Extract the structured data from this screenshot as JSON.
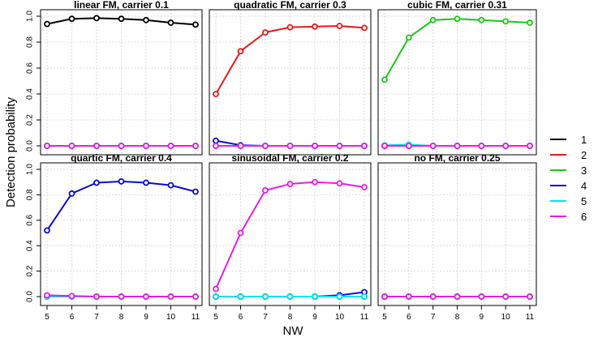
{
  "chart_data": {
    "type": "line",
    "xlabel": "NW",
    "ylabel": "Detection probability",
    "x": [
      5,
      6,
      7,
      8,
      9,
      10,
      11
    ],
    "ylim": [
      0,
      1
    ],
    "y_ticks": [
      "0.0",
      "0.2",
      "0.4",
      "0.6",
      "0.8",
      "1.0"
    ],
    "grid": true,
    "legend_position": "right",
    "legend": [
      {
        "name": "1",
        "color": "#000000"
      },
      {
        "name": "2",
        "color": "#e41a1c"
      },
      {
        "name": "3",
        "color": "#19c819"
      },
      {
        "name": "4",
        "color": "#0a0ad2"
      },
      {
        "name": "5",
        "color": "#00e5ee"
      },
      {
        "name": "6",
        "color": "#e61ee6"
      }
    ],
    "panels": [
      {
        "title": "linear FM, carrier  0.1",
        "series": [
          {
            "name": "1",
            "values": [
              0.94,
              0.98,
              0.985,
              0.98,
              0.97,
              0.95,
              0.935
            ]
          },
          {
            "name": "2",
            "values": [
              0,
              0,
              0,
              0,
              0,
              0,
              0
            ]
          },
          {
            "name": "3",
            "values": [
              0,
              0,
              0,
              0,
              0,
              0,
              0
            ]
          },
          {
            "name": "4",
            "values": [
              0,
              0,
              0,
              0,
              0,
              0,
              0
            ]
          },
          {
            "name": "5",
            "values": [
              0,
              0,
              0,
              0,
              0,
              0,
              0
            ]
          },
          {
            "name": "6",
            "values": [
              0,
              0,
              0,
              0,
              0,
              0,
              0
            ]
          }
        ]
      },
      {
        "title": "quadratic FM, carrier  0.3",
        "series": [
          {
            "name": "1",
            "values": [
              0,
              0,
              0,
              0,
              0,
              0,
              0
            ]
          },
          {
            "name": "2",
            "values": [
              0.4,
              0.73,
              0.875,
              0.915,
              0.92,
              0.925,
              0.91
            ]
          },
          {
            "name": "3",
            "values": [
              0,
              0,
              0,
              0,
              0,
              0,
              0
            ]
          },
          {
            "name": "4",
            "values": [
              0.04,
              0.005,
              0,
              0,
              0,
              0,
              0
            ]
          },
          {
            "name": "5",
            "values": [
              0,
              0,
              0,
              0,
              0,
              0,
              0
            ]
          },
          {
            "name": "6",
            "values": [
              0,
              0,
              0,
              0,
              0,
              0,
              0
            ]
          }
        ]
      },
      {
        "title": "cubic FM, carrier  0.31",
        "series": [
          {
            "name": "1",
            "values": [
              0,
              0,
              0,
              0,
              0,
              0,
              0
            ]
          },
          {
            "name": "2",
            "values": [
              0,
              0,
              0,
              0,
              0,
              0,
              0
            ]
          },
          {
            "name": "3",
            "values": [
              0.51,
              0.835,
              0.97,
              0.98,
              0.97,
              0.96,
              0.95
            ]
          },
          {
            "name": "4",
            "values": [
              0,
              0,
              0,
              0,
              0,
              0,
              0
            ]
          },
          {
            "name": "5",
            "values": [
              0.005,
              0.01,
              0,
              0,
              0,
              0,
              0
            ]
          },
          {
            "name": "6",
            "values": [
              0,
              0,
              0,
              0,
              0,
              0,
              0
            ]
          }
        ]
      },
      {
        "title": "quartic FM, carrier  0.4",
        "series": [
          {
            "name": "1",
            "values": [
              0,
              0,
              0,
              0,
              0,
              0,
              0
            ]
          },
          {
            "name": "2",
            "values": [
              0,
              0,
              0,
              0,
              0,
              0,
              0
            ]
          },
          {
            "name": "3",
            "values": [
              0,
              0,
              0,
              0,
              0,
              0,
              0
            ]
          },
          {
            "name": "4",
            "values": [
              0.52,
              0.81,
              0.895,
              0.905,
              0.895,
              0.875,
              0.825
            ]
          },
          {
            "name": "5",
            "values": [
              0,
              0,
              0,
              0,
              0,
              0,
              0
            ]
          },
          {
            "name": "6",
            "values": [
              0.01,
              0.005,
              0,
              0,
              0,
              0,
              0
            ]
          }
        ]
      },
      {
        "title": "sinusoidal FM, carrier  0.2",
        "series": [
          {
            "name": "1",
            "values": [
              0,
              0,
              0,
              0,
              0,
              0,
              0
            ]
          },
          {
            "name": "2",
            "values": [
              0,
              0,
              0,
              0,
              0,
              0,
              0
            ]
          },
          {
            "name": "3",
            "values": [
              0,
              0,
              0,
              0,
              0,
              0,
              0
            ]
          },
          {
            "name": "4",
            "values": [
              0,
              0,
              0,
              0,
              0,
              0.01,
              0.035
            ]
          },
          {
            "name": "5",
            "values": [
              0,
              0,
              0,
              0,
              0,
              0,
              0
            ]
          },
          {
            "name": "6",
            "values": [
              0.06,
              0.5,
              0.835,
              0.885,
              0.9,
              0.89,
              0.86
            ]
          }
        ]
      },
      {
        "title": "no FM, carrier  0.25",
        "series": [
          {
            "name": "1",
            "values": [
              0,
              0,
              0,
              0,
              0,
              0,
              0
            ]
          },
          {
            "name": "2",
            "values": [
              0,
              0,
              0,
              0,
              0,
              0,
              0
            ]
          },
          {
            "name": "3",
            "values": [
              0,
              0,
              0,
              0,
              0,
              0,
              0
            ]
          },
          {
            "name": "4",
            "values": [
              0,
              0,
              0,
              0,
              0,
              0,
              0
            ]
          },
          {
            "name": "5",
            "values": [
              0,
              0,
              0,
              0,
              0,
              0,
              0
            ]
          },
          {
            "name": "6",
            "values": [
              0,
              0,
              0,
              0,
              0,
              0,
              0
            ]
          }
        ]
      }
    ]
  }
}
